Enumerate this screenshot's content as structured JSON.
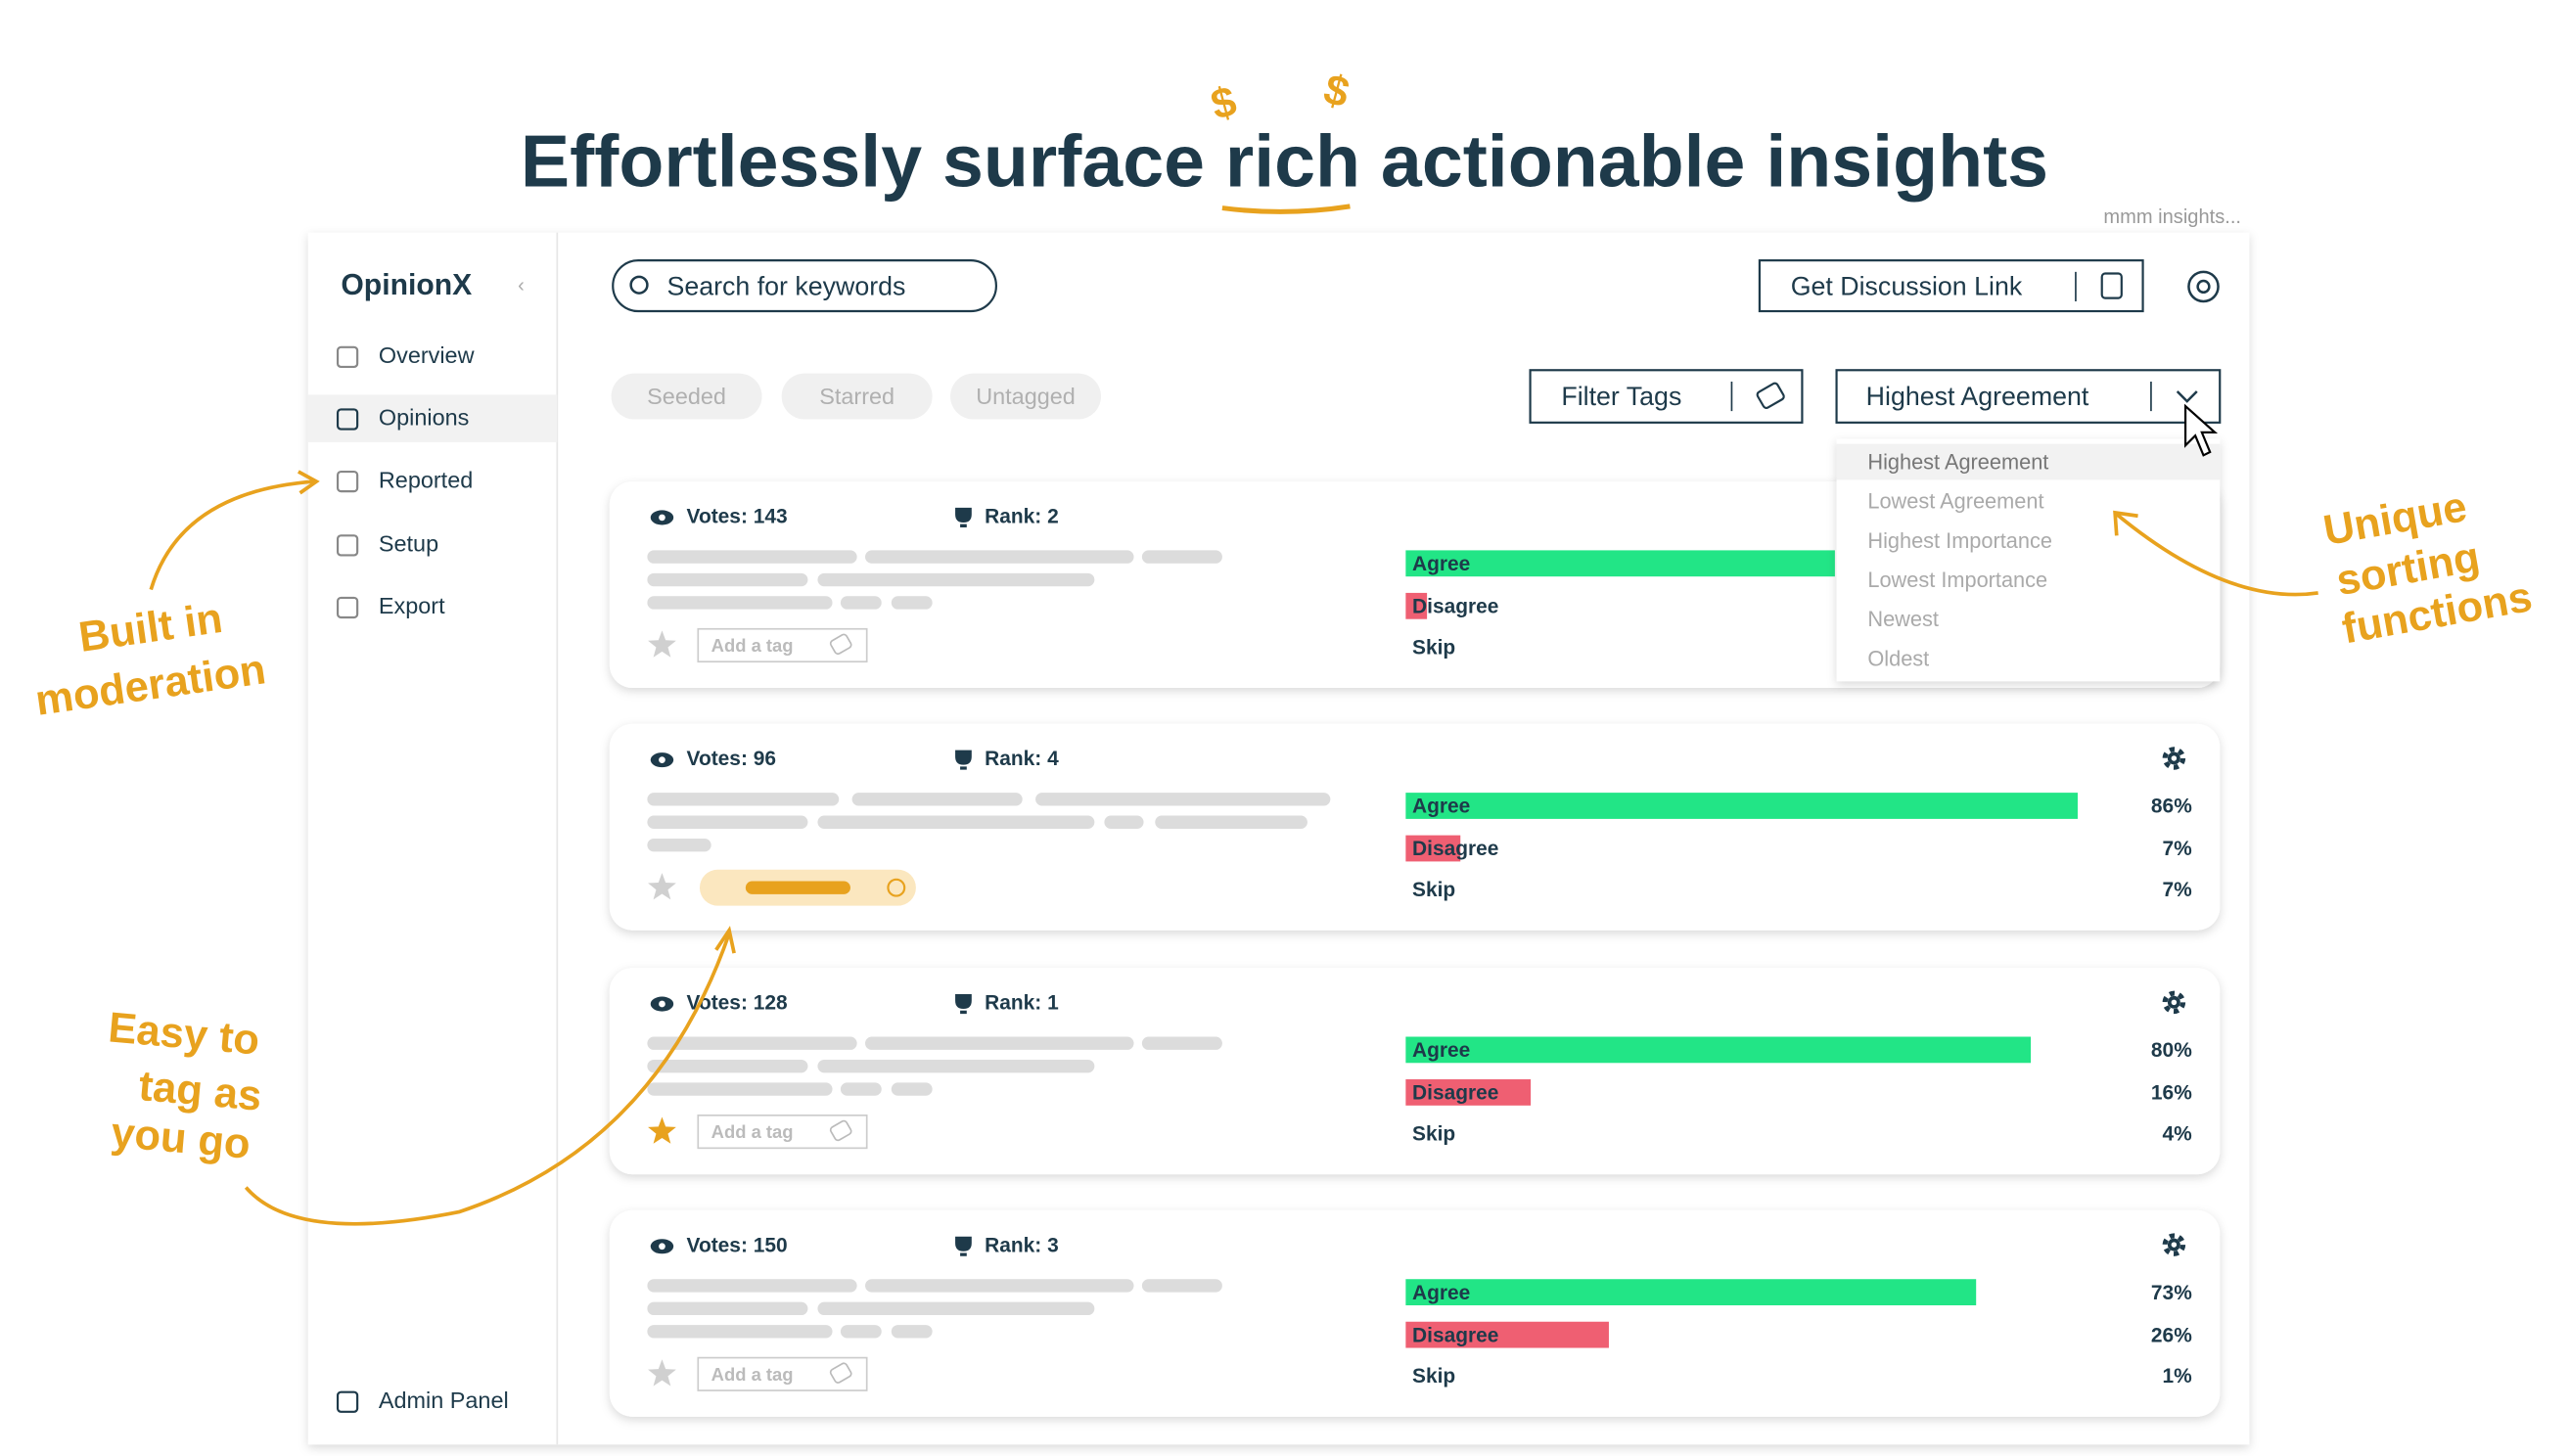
{
  "header": {
    "title": "Effortlessly surface rich actionable insights",
    "note": "mmm insights..."
  },
  "sidebar": {
    "logo": "OpinionX",
    "nav": [
      "Overview",
      "Opinions",
      "Reported",
      "Setup",
      "Export"
    ],
    "footer": "Admin Panel"
  },
  "toolbar": {
    "search_placeholder": "Search for keywords",
    "discussion_button": "Get Discussion Link",
    "chips": [
      "Seeded",
      "Starred",
      "Untagged"
    ],
    "filter_button": "Filter Tags",
    "sort_selected": "Highest Agreement",
    "sort_options": [
      "Highest Agreement",
      "Lowest Agreement",
      "Highest Importance",
      "Lowest Importance",
      "Newest",
      "Oldest"
    ]
  },
  "cards": [
    {
      "votes": "Votes: 143",
      "rank": "Rank: 2",
      "tag_placeholder": "Add a tag",
      "results": [
        {
          "label": "Agree"
        },
        {
          "label": "Disagree"
        },
        {
          "label": "Skip"
        }
      ]
    },
    {
      "votes": "Votes: 96",
      "rank": "Rank: 4",
      "results": [
        {
          "label": "Agree",
          "value": 86,
          "value_label": "86%"
        },
        {
          "label": "Disagree",
          "value": 7,
          "value_label": "7%"
        },
        {
          "label": "Skip",
          "value": 7,
          "value_label": "7%"
        }
      ]
    },
    {
      "votes": "Votes: 128",
      "rank": "Rank: 1",
      "tag_placeholder": "Add a tag",
      "results": [
        {
          "label": "Agree",
          "value": 80,
          "value_label": "80%"
        },
        {
          "label": "Disagree",
          "value": 16,
          "value_label": "16%"
        },
        {
          "label": "Skip",
          "value": 4,
          "value_label": "4%"
        }
      ]
    },
    {
      "votes": "Votes: 150",
      "rank": "Rank: 3",
      "tag_placeholder": "Add a tag",
      "results": [
        {
          "label": "Agree",
          "value": 73,
          "value_label": "73%"
        },
        {
          "label": "Disagree",
          "value": 26,
          "value_label": "26%"
        },
        {
          "label": "Skip",
          "value": 1,
          "value_label": "1%"
        }
      ]
    }
  ],
  "annotations": [
    {
      "lines": [
        "Built in",
        "moderation"
      ]
    },
    {
      "lines": [
        "Easy to",
        "tag as",
        "you go"
      ]
    },
    {
      "lines": [
        "Unique",
        "sorting",
        "functions"
      ]
    }
  ]
}
